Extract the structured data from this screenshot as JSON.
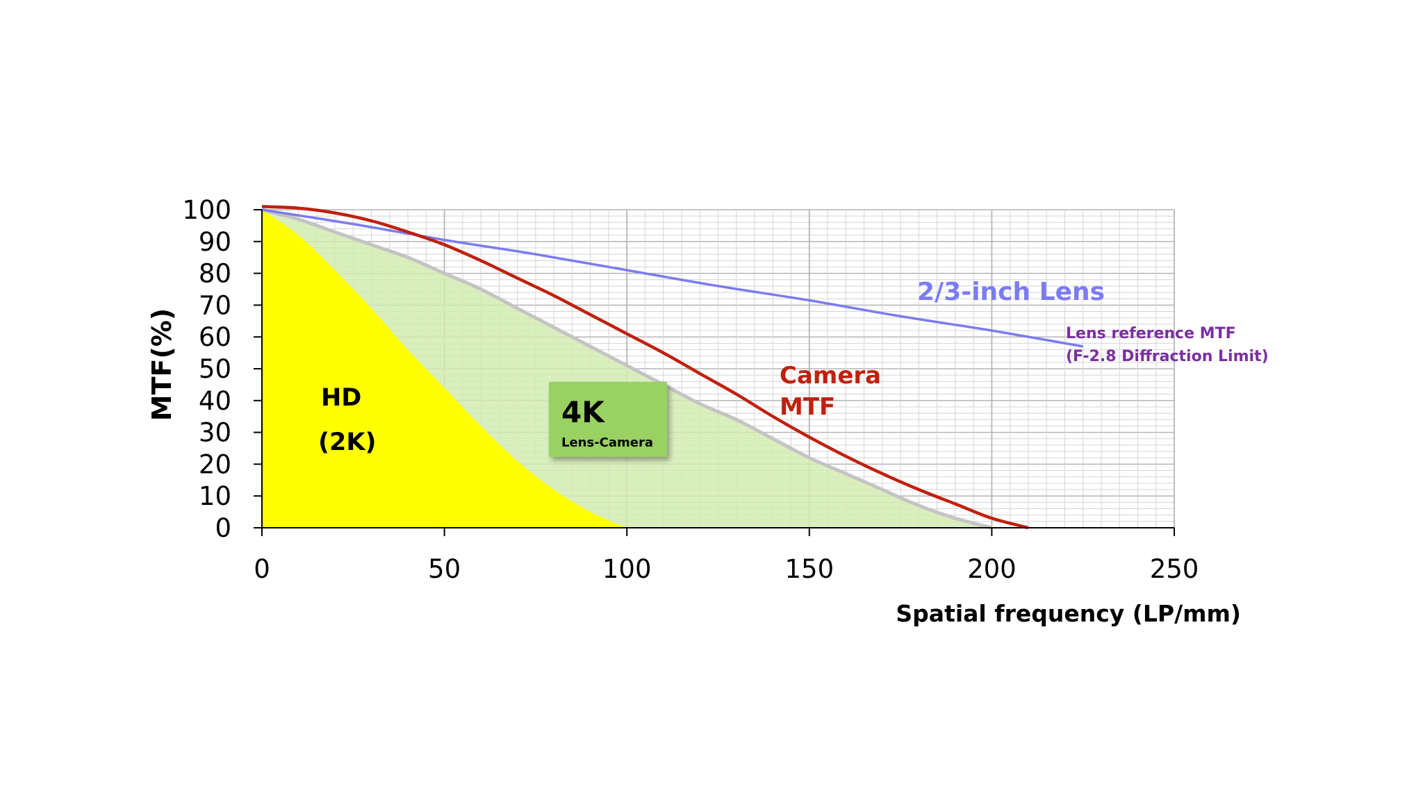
{
  "chart_data": {
    "type": "line",
    "xlabel": "Spatial frequency (LP/mm)",
    "ylabel": "MTF(%)",
    "xlim": [
      0,
      250
    ],
    "ylim": [
      0,
      100
    ],
    "x_ticks": [
      "0",
      "50",
      "100",
      "150",
      "200",
      "250"
    ],
    "y_ticks": [
      "0",
      "10",
      "20",
      "30",
      "40",
      "50",
      "60",
      "70",
      "80",
      "90",
      "100"
    ],
    "grid": true,
    "colors": {
      "hd_fill": "#ffff00",
      "fourk_fill": "#d2ebb0",
      "fourk_edge": "#c4c4c4",
      "lens": "#7b7bf2",
      "camera": "#c0200e",
      "grid_major": "#b4b4b4",
      "grid_minor": "#d4d4d4",
      "lens_ref_text": "#7a2fa0",
      "box": "#99d162"
    },
    "series": [
      {
        "name": "HD (2K)",
        "kind": "area",
        "x": [
          0,
          10,
          20,
          30,
          40,
          50,
          60,
          70,
          80,
          90,
          100
        ],
        "values": [
          100,
          92,
          81,
          69,
          56,
          44,
          32,
          21,
          12,
          5,
          0
        ]
      },
      {
        "name": "4K Lens-Camera",
        "kind": "area",
        "x": [
          0,
          10,
          20,
          30,
          40,
          50,
          60,
          70,
          80,
          90,
          100,
          110,
          120,
          130,
          140,
          150,
          160,
          170,
          180,
          190,
          200
        ],
        "values": [
          100,
          97,
          93,
          89,
          85,
          80,
          75,
          69,
          63,
          57,
          51,
          45,
          39,
          34,
          28,
          22,
          17,
          12,
          7,
          3,
          0
        ]
      },
      {
        "name": "2/3-inch Lens",
        "kind": "line",
        "x": [
          0,
          25,
          50,
          75,
          100,
          125,
          150,
          175,
          200,
          225
        ],
        "values": [
          100,
          95.5,
          90.5,
          86,
          81,
          76,
          71.5,
          66.5,
          62,
          57
        ]
      },
      {
        "name": "Camera MTF",
        "kind": "line",
        "x": [
          0,
          10,
          20,
          30,
          40,
          50,
          60,
          70,
          80,
          90,
          100,
          110,
          120,
          130,
          140,
          150,
          160,
          170,
          180,
          190,
          200,
          210
        ],
        "values": [
          101,
          100.5,
          99,
          96.5,
          93,
          89,
          84,
          78.5,
          73,
          67,
          61,
          55,
          48.5,
          42,
          35,
          28.5,
          22.5,
          17,
          12,
          7.5,
          3,
          0
        ]
      }
    ],
    "annotations": {
      "hd_line1": "HD",
      "hd_line2": "(2K)",
      "fourk_title": "4K",
      "fourk_sub": "Lens-Camera",
      "lens_label": "2/3-inch Lens",
      "lens_ref_line1": "Lens reference MTF",
      "lens_ref_line2": "(F-2.8 Diffraction Limit)",
      "camera_line1": "Camera",
      "camera_line2": "MTF"
    }
  }
}
